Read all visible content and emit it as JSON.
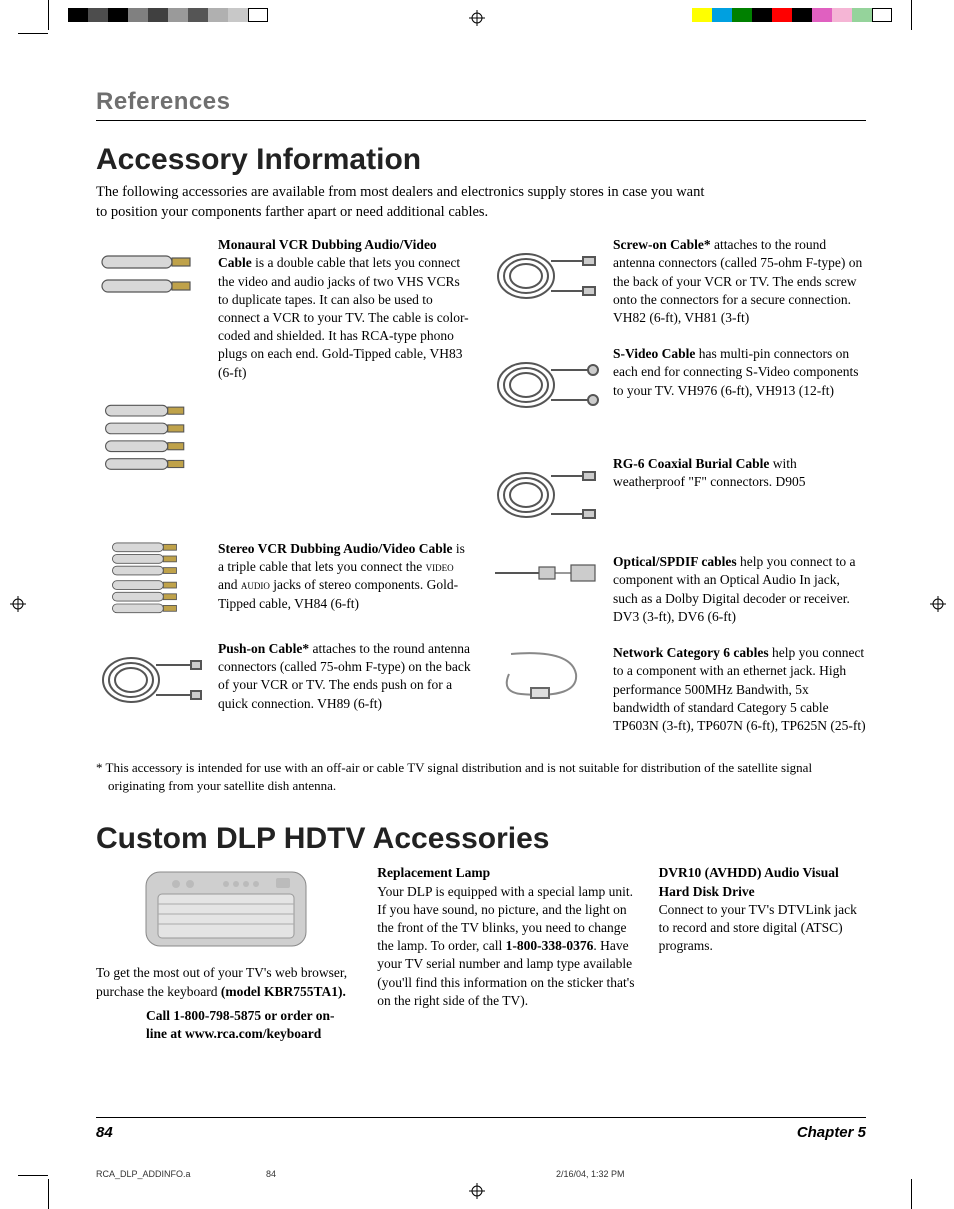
{
  "colorbar_left": [
    "#000000",
    "#4d4d4d",
    "#000000",
    "#808080",
    "#404040",
    "#9a9a9a",
    "#555555",
    "#b0b0b0",
    "#c8c8c8",
    "#ffffff"
  ],
  "colorbar_right": [
    "#ffff00",
    "#00a0e0",
    "#008000",
    "#000000",
    "#ff0000",
    "#000000",
    "#e060c0",
    "#f5b5d5",
    "#95d39b",
    "#ffffff"
  ],
  "section_title": "References",
  "h1_a": "Accessory Information",
  "intro": "The following accessories are available from most dealers and electronics supply stores in case you want to position your components farther apart or need additional cables.",
  "items_left": [
    {
      "title": "Monaural VCR Dubbing Audio/Video Cable",
      "body": " is a double cable that lets you connect the video and audio jacks of two VHS VCRs to duplicate tapes.  It can also be used to connect a VCR to your TV.  The cable is color-coded and shielded.  It has RCA-type phono plugs on each end. Gold-Tipped cable, VH83 (6-ft)"
    },
    {
      "title": "Stereo VCR Dubbing Audio/Video Cable",
      "body": " is a triple cable that lets you connect the ",
      "body2": " and ",
      "body3": " jacks of stereo components. Gold-Tipped cable, VH84 (6-ft)",
      "sc1": "video",
      "sc2": "audio"
    },
    {
      "title": "Push-on Cable*",
      "body": " attaches to the round antenna connectors (called 75-ohm F-type) on the back of your VCR or TV. The ends push on for a quick connection. VH89 (6-ft)"
    }
  ],
  "items_right": [
    {
      "title": "Screw-on Cable*",
      "body": " attaches to the round antenna connectors (called 75-ohm F-type) on the back of your VCR or TV. The ends screw onto the connectors for a secure connection. VH82 (6-ft), VH81 (3-ft)"
    },
    {
      "title": "S-Video Cable",
      "body": "  has multi-pin connectors on each end for connecting S-Video components to your TV. VH976 (6-ft), VH913 (12-ft)"
    },
    {
      "title": "RG-6 Coaxial Burial Cable",
      "body": "   with weatherproof \"F\" connectors. D905"
    },
    {
      "title": "Optical/SPDIF cables",
      "body": " help you connect to a component with an Optical Audio In jack, such as a Dolby Digital decoder or receiver. DV3 (3-ft), DV6 (6-ft)"
    },
    {
      "title": "Network Category 6 cables",
      "body": " help you connect to a component with an ethernet jack. High performance 500MHz Bandwith, 5x bandwidth of standard Category 5 cable TP603N (3-ft), TP607N (6-ft), TP625N (25-ft)"
    }
  ],
  "footnote": "*  This accessory is intended for use with an off-air or cable TV signal distribution and is not suitable for distribution of the satellite signal originating from your satellite dish antenna.",
  "h1_b": "Custom DLP HDTV Accessories",
  "kbd_text_a": "To get the most out of your TV's web browser, purchase the keyboard ",
  "kbd_model": "(model KBR755TA1).",
  "kbd_call": "Call 1-800-798-5875 or order on-line at www.rca.com/keyboard",
  "lamp_title": "Replacement Lamp",
  "lamp_body_a": "Your DLP is equipped with a special lamp unit. If you have sound, no picture, and the light on the front of the TV blinks, you need to change the lamp. To order, call ",
  "lamp_phone": "1-800-338-0376",
  "lamp_body_b": ". Have your TV serial number and lamp type available (you'll find this information on the sticker that's on the right side of the TV).",
  "dvr_title": "DVR10 (AVHDD) Audio Visual Hard Disk Drive",
  "dvr_body": "Connect to your TV's DTVLink jack to record and store digital (ATSC) programs.",
  "page_num": "84",
  "chapter": "Chapter 5",
  "slug_file": "RCA_DLP_ADDINFO.a",
  "slug_page": "84",
  "slug_date": "2/16/04, 1:32 PM"
}
